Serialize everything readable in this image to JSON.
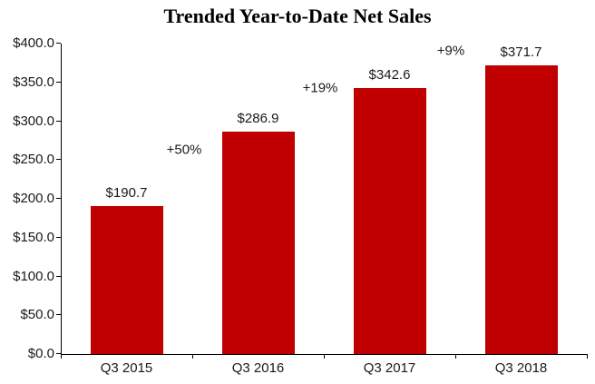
{
  "chart_data": {
    "type": "bar",
    "title": "Trended Year-to-Date Net Sales",
    "categories": [
      "Q3 2015",
      "Q3 2016",
      "Q3 2017",
      "Q3 2018"
    ],
    "values": [
      190.7,
      286.9,
      342.6,
      371.7
    ],
    "data_labels": [
      "$190.7",
      "$286.9",
      "$342.6",
      "$371.7"
    ],
    "annotations": [
      {
        "text": "+50%",
        "x": 203,
        "y": 165
      },
      {
        "text": "+19%",
        "x": 353,
        "y": 97
      },
      {
        "text": "+9%",
        "x": 497,
        "y": 56
      }
    ],
    "ylim": [
      0,
      400
    ],
    "ytick_step": 50,
    "ytick_labels": [
      "$0.0",
      "$50.0",
      "$100.0",
      "$150.0",
      "$200.0",
      "$250.0",
      "$300.0",
      "$350.0",
      "$400.0"
    ],
    "xlabel": "",
    "ylabel": "",
    "grid": false,
    "legend": false,
    "bar_color": "#C00000",
    "background_color": "#FFFFFF",
    "axis_color": "#000000"
  }
}
